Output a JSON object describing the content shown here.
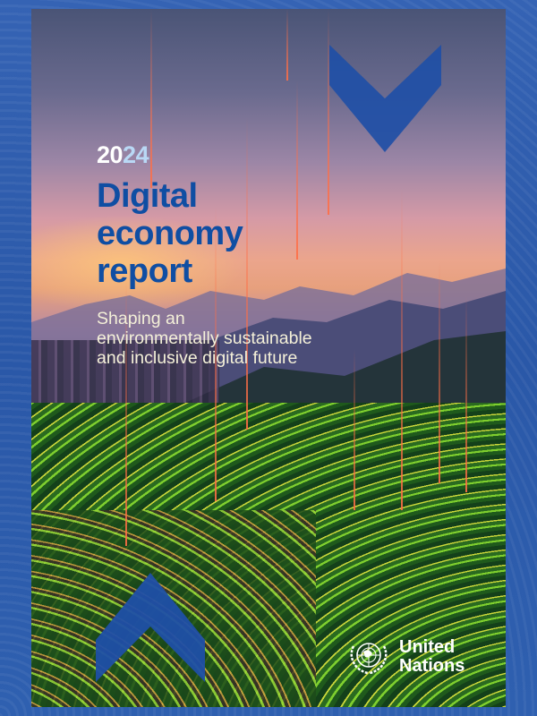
{
  "cover": {
    "year_prefix": "20",
    "year_suffix": "24",
    "title_lines": [
      "Digital",
      "economy",
      "report"
    ],
    "subtitle_lines": [
      "Shaping an",
      "environmentally sustainable",
      "and inclusive digital future"
    ],
    "publisher_lines": [
      "United",
      "Nations"
    ],
    "logo": "un-emblem-icon"
  },
  "colors": {
    "frame": "#2f5fae",
    "title": "#0f4ea3",
    "chevron": "#1f4fa6",
    "year_accent": "#b9d8f5"
  }
}
